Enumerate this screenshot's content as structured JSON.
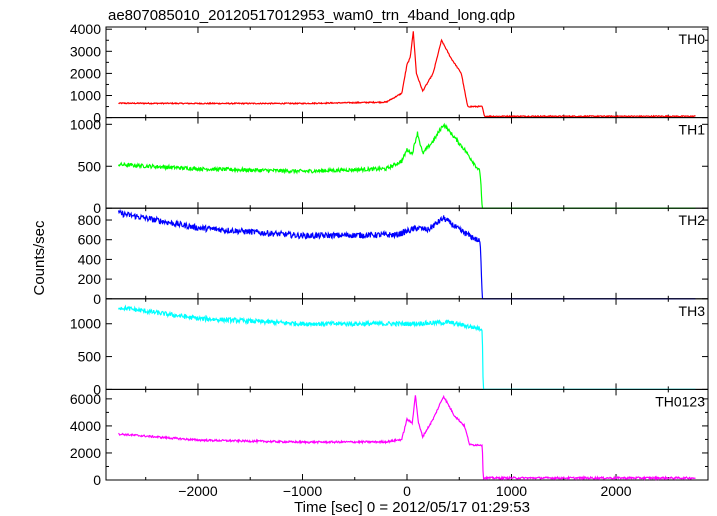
{
  "title": "ae807085010_20120517012953_wam0_trn_4band_long.qdp",
  "chart_data": {
    "type": "line",
    "title": "ae807085010_20120517012953_wam0_trn_4band_long.qdp",
    "xlabel": "Time [sec] 0 = 2012/05/17 01:29:53",
    "ylabel": "Counts/sec",
    "xlim": [
      -2880,
      2880
    ],
    "x_ticks": [
      -2000,
      -1000,
      0,
      1000,
      2000
    ],
    "data_x_range": [
      -2760,
      2760
    ],
    "grid": false,
    "panels": [
      {
        "name": "TH0",
        "color": "#ff0000",
        "ylim": [
          0,
          4100
        ],
        "y_ticks": [
          0,
          500,
          1000,
          1500,
          2000,
          2500,
          3000,
          3500,
          4000
        ],
        "y_tick_labels": [
          "0",
          "",
          "1000",
          "",
          "2000",
          "",
          "3000",
          "",
          "4000"
        ],
        "noise": 25,
        "x": [
          -2760,
          -2000,
          -1000,
          -200,
          -50,
          0,
          30,
          60,
          90,
          150,
          250,
          330,
          420,
          520,
          580,
          720,
          740,
          2760
        ],
        "values": [
          650,
          640,
          640,
          700,
          1100,
          2400,
          2700,
          3900,
          2000,
          1200,
          2000,
          3500,
          2700,
          2000,
          500,
          500,
          60,
          60
        ]
      },
      {
        "name": "TH1",
        "color": "#00ff00",
        "ylim": [
          0,
          1080
        ],
        "y_ticks": [
          0,
          500,
          1000
        ],
        "y_tick_labels": [
          "0",
          "500",
          "1000"
        ],
        "noise": 22,
        "x": [
          -2760,
          -2000,
          -1000,
          -200,
          -50,
          0,
          50,
          100,
          150,
          250,
          350,
          450,
          550,
          700,
          720,
          2760
        ],
        "values": [
          520,
          470,
          440,
          470,
          560,
          700,
          650,
          900,
          650,
          800,
          1000,
          850,
          700,
          430,
          0,
          0
        ]
      },
      {
        "name": "TH2",
        "color": "#0000ff",
        "ylim": [
          0,
          920
        ],
        "y_ticks": [
          0,
          200,
          400,
          600,
          800
        ],
        "y_tick_labels": [
          "0",
          "200",
          "400",
          "600",
          "800"
        ],
        "noise": 30,
        "x": [
          -2760,
          -2000,
          -1000,
          -100,
          100,
          200,
          350,
          500,
          700,
          720,
          2760
        ],
        "values": [
          870,
          720,
          640,
          650,
          720,
          700,
          820,
          700,
          580,
          0,
          0
        ]
      },
      {
        "name": "TH3",
        "color": "#00ffff",
        "ylim": [
          0,
          1380
        ],
        "y_ticks": [
          0,
          500,
          1000
        ],
        "y_tick_labels": [
          "0",
          "500",
          "1000"
        ],
        "noise": 35,
        "x": [
          -2760,
          -2000,
          -1000,
          0,
          400,
          720,
          730,
          2760
        ],
        "values": [
          1250,
          1080,
          1000,
          1000,
          1020,
          920,
          0,
          0
        ]
      },
      {
        "name": "TH0123",
        "color": "#ff00ff",
        "ylim": [
          0,
          6700
        ],
        "y_ticks": [
          0,
          1000,
          2000,
          3000,
          4000,
          5000,
          6000
        ],
        "y_tick_labels": [
          "0",
          "",
          "2000",
          "",
          "4000",
          "",
          "6000"
        ],
        "noise": 70,
        "x": [
          -2760,
          -2000,
          -1000,
          -200,
          -50,
          0,
          50,
          80,
          110,
          150,
          250,
          350,
          450,
          550,
          600,
          720,
          730,
          2760
        ],
        "values": [
          3400,
          2950,
          2800,
          2820,
          3000,
          4500,
          4200,
          6300,
          4200,
          3200,
          4500,
          6200,
          4800,
          4000,
          2600,
          2600,
          150,
          150
        ]
      }
    ]
  }
}
